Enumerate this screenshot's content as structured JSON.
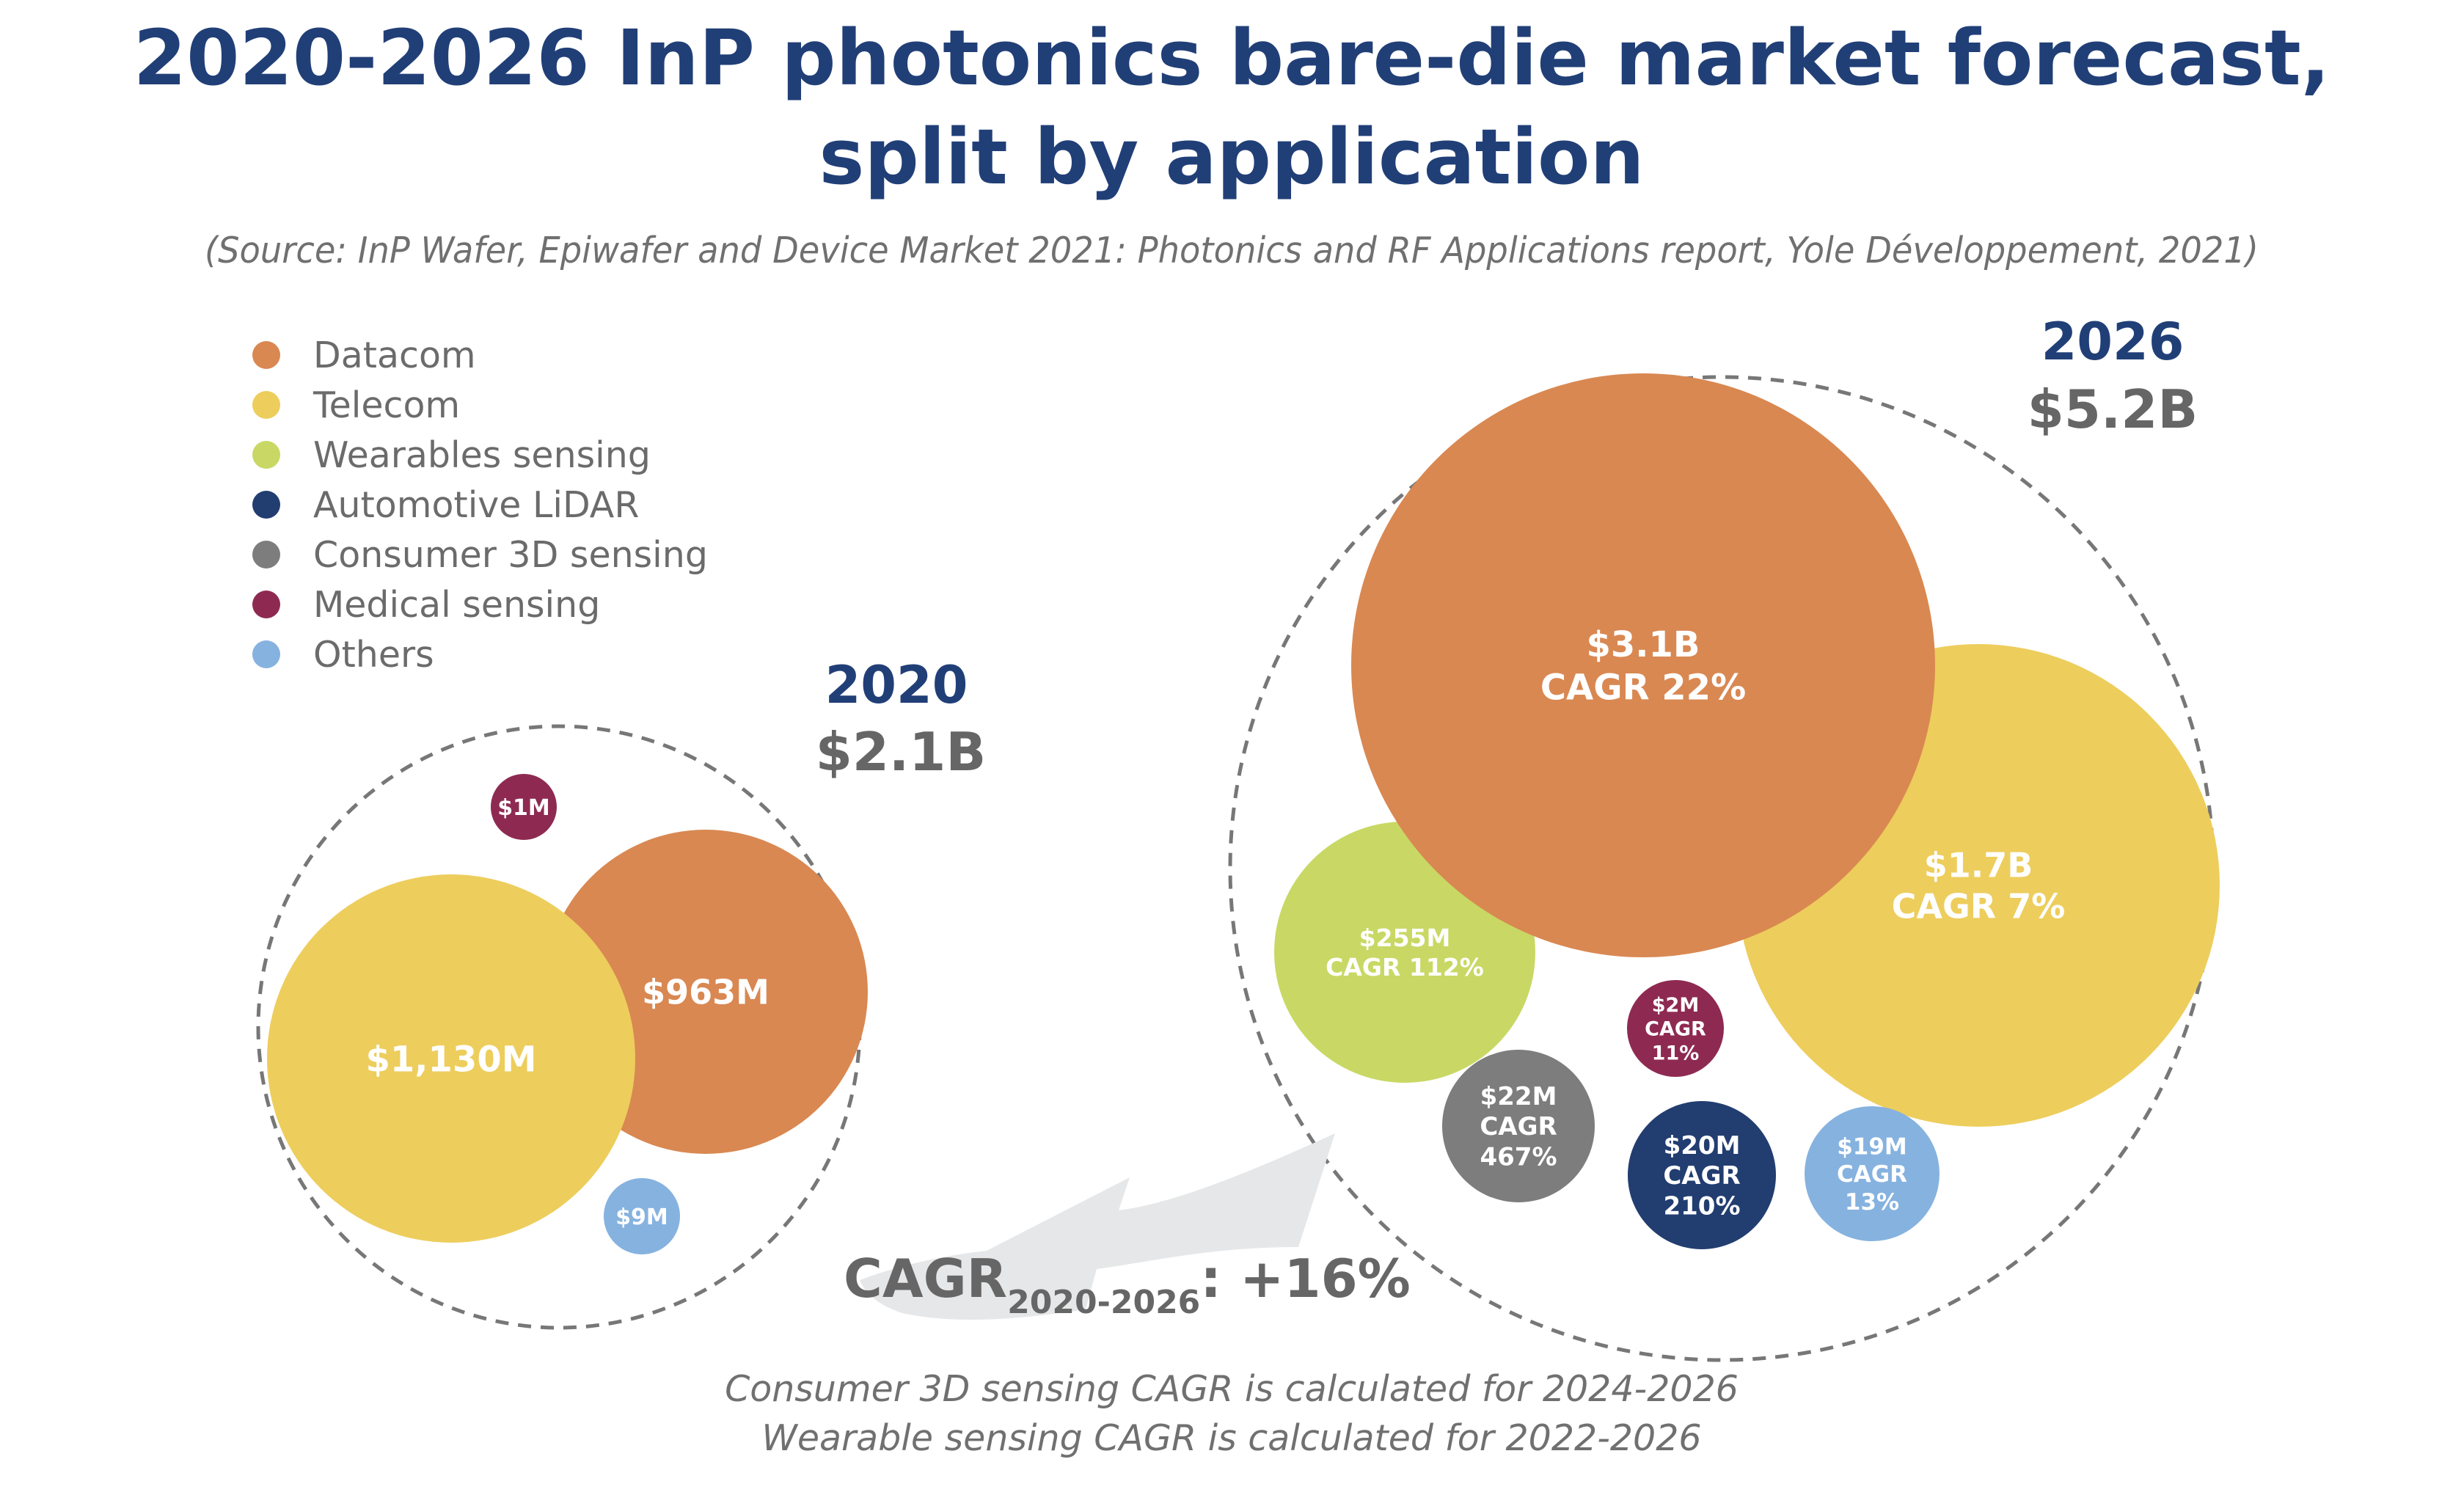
{
  "title_line1": "2020-2026 InP photonics bare-die market forecast,",
  "title_line2": "split by application",
  "source": "(Source: InP Wafer, Epiwafer and Device Market 2021: Photonics and RF Applications report, Yole Développement, 2021)",
  "legend": [
    {
      "label": "Datacom",
      "color": "#d98852"
    },
    {
      "label": "Telecom",
      "color": "#edcd5c"
    },
    {
      "label": "Wearables sensing",
      "color": "#c9d864"
    },
    {
      "label": "Automotive LiDAR",
      "color": "#223d70"
    },
    {
      "label": "Consumer 3D sensing",
      "color": "#7d7d7d"
    },
    {
      "label": "Medical sensing",
      "color": "#8e2a52"
    },
    {
      "label": "Others",
      "color": "#86b2df"
    }
  ],
  "chart_data": {
    "type": "bubble",
    "unit": "USD",
    "groups": [
      {
        "year": "2020",
        "total_label": "$2.1B",
        "total_musd": 2100,
        "bubbles": [
          {
            "series": "Telecom",
            "value_musd": 1130,
            "label": "$1,130M"
          },
          {
            "series": "Datacom",
            "value_musd": 963,
            "label": "$963M"
          },
          {
            "series": "Medical sensing",
            "value_musd": 1,
            "label": "$1M"
          },
          {
            "series": "Others",
            "value_musd": 9,
            "label": "$9M"
          }
        ]
      },
      {
        "year": "2026",
        "total_label": "$5.2B",
        "total_musd": 5200,
        "bubbles": [
          {
            "series": "Datacom",
            "value_musd": 3100,
            "label": "$3.1B",
            "cagr_label": "CAGR 22%"
          },
          {
            "series": "Telecom",
            "value_musd": 1700,
            "label": "$1.7B",
            "cagr_label": "CAGR 7%"
          },
          {
            "series": "Wearables sensing",
            "value_musd": 255,
            "label": "$255M",
            "cagr_label": "CAGR 112%"
          },
          {
            "series": "Medical sensing",
            "value_musd": 2,
            "label": "$2M",
            "cagr_label": "CAGR 11%"
          },
          {
            "series": "Consumer 3D sensing",
            "value_musd": 22,
            "label": "$22M",
            "cagr_label": "CAGR 467%"
          },
          {
            "series": "Automotive LiDAR",
            "value_musd": 20,
            "label": "$20M",
            "cagr_label": "CAGR 210%"
          },
          {
            "series": "Others",
            "value_musd": 19,
            "label": "$19M",
            "cagr_label": "CAGR 13%"
          }
        ]
      }
    ],
    "overall_cagr": {
      "prefix": "CAGR",
      "period": "2020-2026",
      "value": ": +16%"
    }
  },
  "notes": [
    "Consumer 3D sensing CAGR is calculated for 2024-2026",
    "Wearable sensing CAGR is calculated for 2022-2026"
  ]
}
